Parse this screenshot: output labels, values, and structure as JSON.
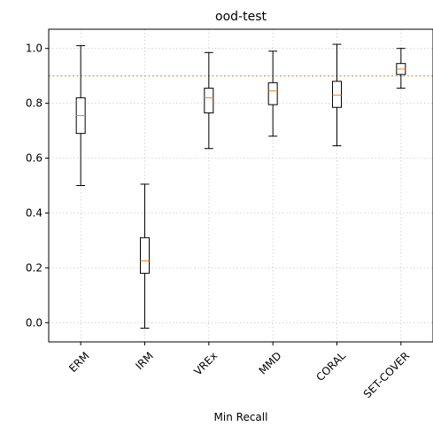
{
  "chart_data": {
    "type": "boxplot",
    "title": "ood-test",
    "xlabel": "Min Recall",
    "ylabel": "",
    "ylim": [
      -0.07,
      1.07
    ],
    "yticks": [
      0.0,
      0.2,
      0.4,
      0.6,
      0.8,
      1.0
    ],
    "ytick_labels": [
      "0.0",
      "0.2",
      "0.4",
      "0.6",
      "0.8",
      "1.0"
    ],
    "grid": true,
    "reference_line": {
      "y": 0.9,
      "style": "dotted",
      "color": "#d9a96a"
    },
    "colors": {
      "box": "#000000",
      "median": "#ff7f0e",
      "grid": "#cccccc"
    },
    "categories": [
      "ERM",
      "IRM",
      "VREx",
      "MMD",
      "CORAL",
      "SET-COVER"
    ],
    "boxes": [
      {
        "name": "ERM",
        "whisker_low": 0.5,
        "q1": 0.69,
        "median": 0.755,
        "q3": 0.82,
        "whisker_high": 1.01
      },
      {
        "name": "IRM",
        "whisker_low": -0.02,
        "q1": 0.18,
        "median": 0.225,
        "q3": 0.31,
        "whisker_high": 0.505
      },
      {
        "name": "VREx",
        "whisker_low": 0.635,
        "q1": 0.765,
        "median": 0.82,
        "q3": 0.855,
        "whisker_high": 0.985
      },
      {
        "name": "MMD",
        "whisker_low": 0.68,
        "q1": 0.795,
        "median": 0.845,
        "q3": 0.875,
        "whisker_high": 0.99
      },
      {
        "name": "CORAL",
        "whisker_low": 0.645,
        "q1": 0.785,
        "median": 0.83,
        "q3": 0.88,
        "whisker_high": 1.015
      },
      {
        "name": "SET-COVER",
        "whisker_low": 0.855,
        "q1": 0.905,
        "median": 0.925,
        "q3": 0.945,
        "whisker_high": 1.0
      }
    ]
  }
}
